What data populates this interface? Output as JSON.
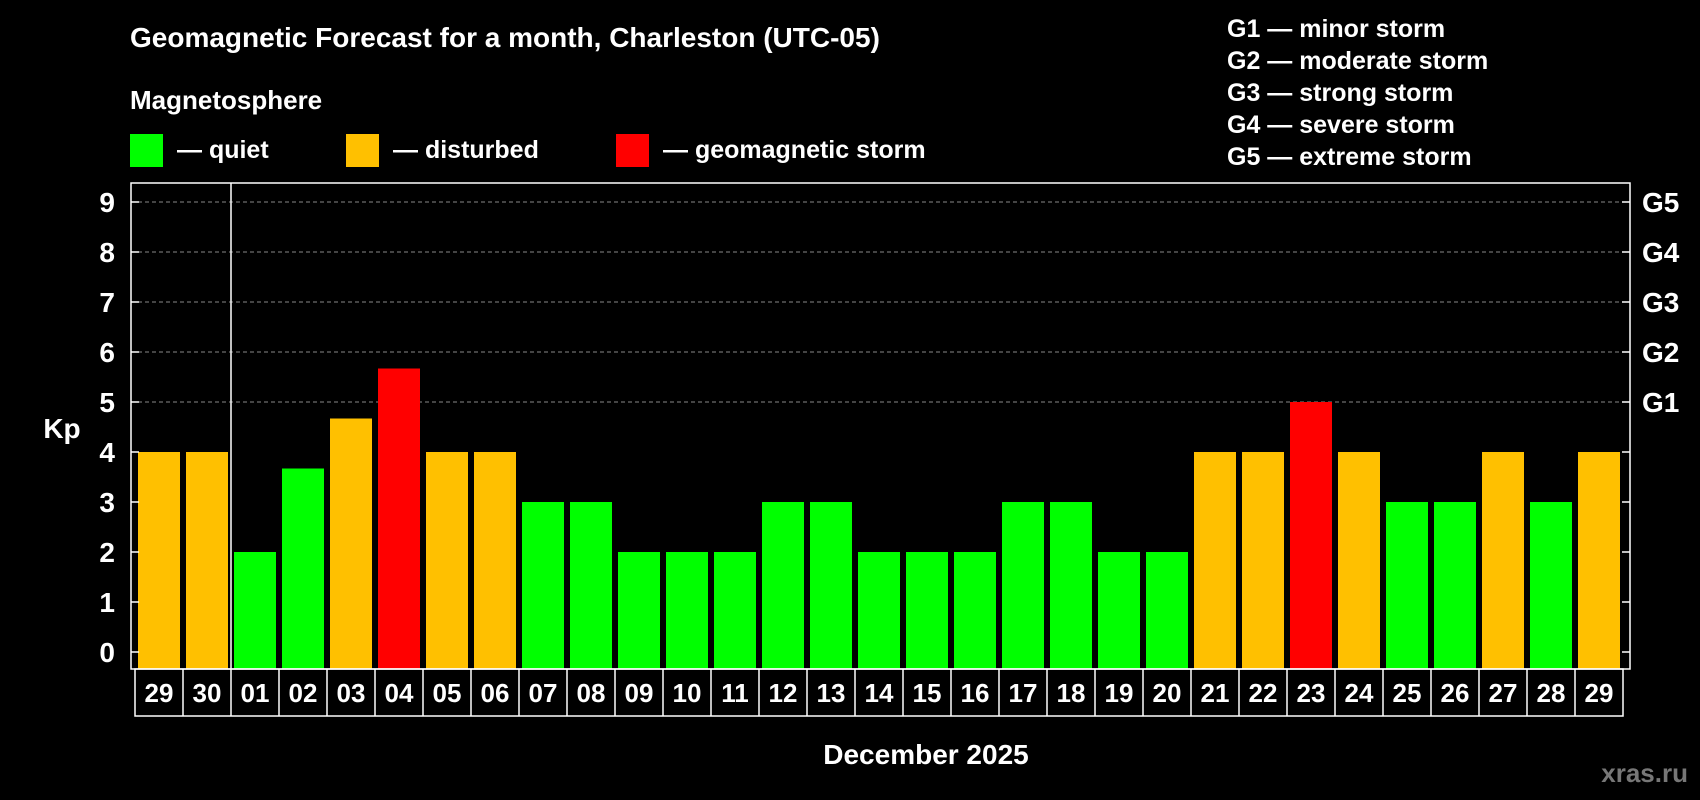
{
  "chart_data": {
    "type": "bar",
    "title": "Geomagnetic Forecast for a month, Charleston (UTC-05)",
    "legend_title": "Magnetosphere",
    "legend": [
      {
        "label": "— quiet",
        "color": "#00ff00"
      },
      {
        "label": "— disturbed",
        "color": "#ffc000"
      },
      {
        "label": "— geomagnetic storm",
        "color": "#ff0000"
      }
    ],
    "storm_scale": [
      "G1 — minor storm",
      "G2 — moderate storm",
      "G3 — strong storm",
      "G4 — severe storm",
      "G5 — extreme storm"
    ],
    "ylabel": "Kp",
    "xlabel": "December 2025",
    "ylim": [
      0,
      9
    ],
    "yticks": [
      "0",
      "1",
      "2",
      "3",
      "4",
      "5",
      "6",
      "7",
      "8",
      "9"
    ],
    "right_axis": [
      {
        "label": "G1",
        "kp": 5
      },
      {
        "label": "G2",
        "kp": 6
      },
      {
        "label": "G3",
        "kp": 7
      },
      {
        "label": "G4",
        "kp": 8
      },
      {
        "label": "G5",
        "kp": 9
      }
    ],
    "categories": [
      "29",
      "30",
      "01",
      "02",
      "03",
      "04",
      "05",
      "06",
      "07",
      "08",
      "09",
      "10",
      "11",
      "12",
      "13",
      "14",
      "15",
      "16",
      "17",
      "18",
      "19",
      "20",
      "21",
      "22",
      "23",
      "24",
      "25",
      "26",
      "27",
      "28",
      "29"
    ],
    "values": [
      4,
      4,
      2,
      3.67,
      4.67,
      5.67,
      4,
      4,
      3,
      3,
      2,
      2,
      2,
      3,
      3,
      2,
      2,
      2,
      3,
      3,
      2,
      2,
      4,
      4,
      5,
      4,
      3,
      3,
      4,
      3,
      4
    ],
    "status": [
      "disturbed",
      "disturbed",
      "quiet",
      "quiet",
      "disturbed",
      "storm",
      "disturbed",
      "disturbed",
      "quiet",
      "quiet",
      "quiet",
      "quiet",
      "quiet",
      "quiet",
      "quiet",
      "quiet",
      "quiet",
      "quiet",
      "quiet",
      "quiet",
      "quiet",
      "quiet",
      "disturbed",
      "disturbed",
      "storm",
      "disturbed",
      "quiet",
      "quiet",
      "disturbed",
      "quiet",
      "disturbed"
    ],
    "colors": {
      "quiet": "#00ff00",
      "disturbed": "#ffc000",
      "storm": "#ff0000",
      "axis": "#ffffff",
      "grid": "#888888"
    },
    "month_divider_after_index": 1,
    "grid": true,
    "watermark": "xras.ru"
  }
}
